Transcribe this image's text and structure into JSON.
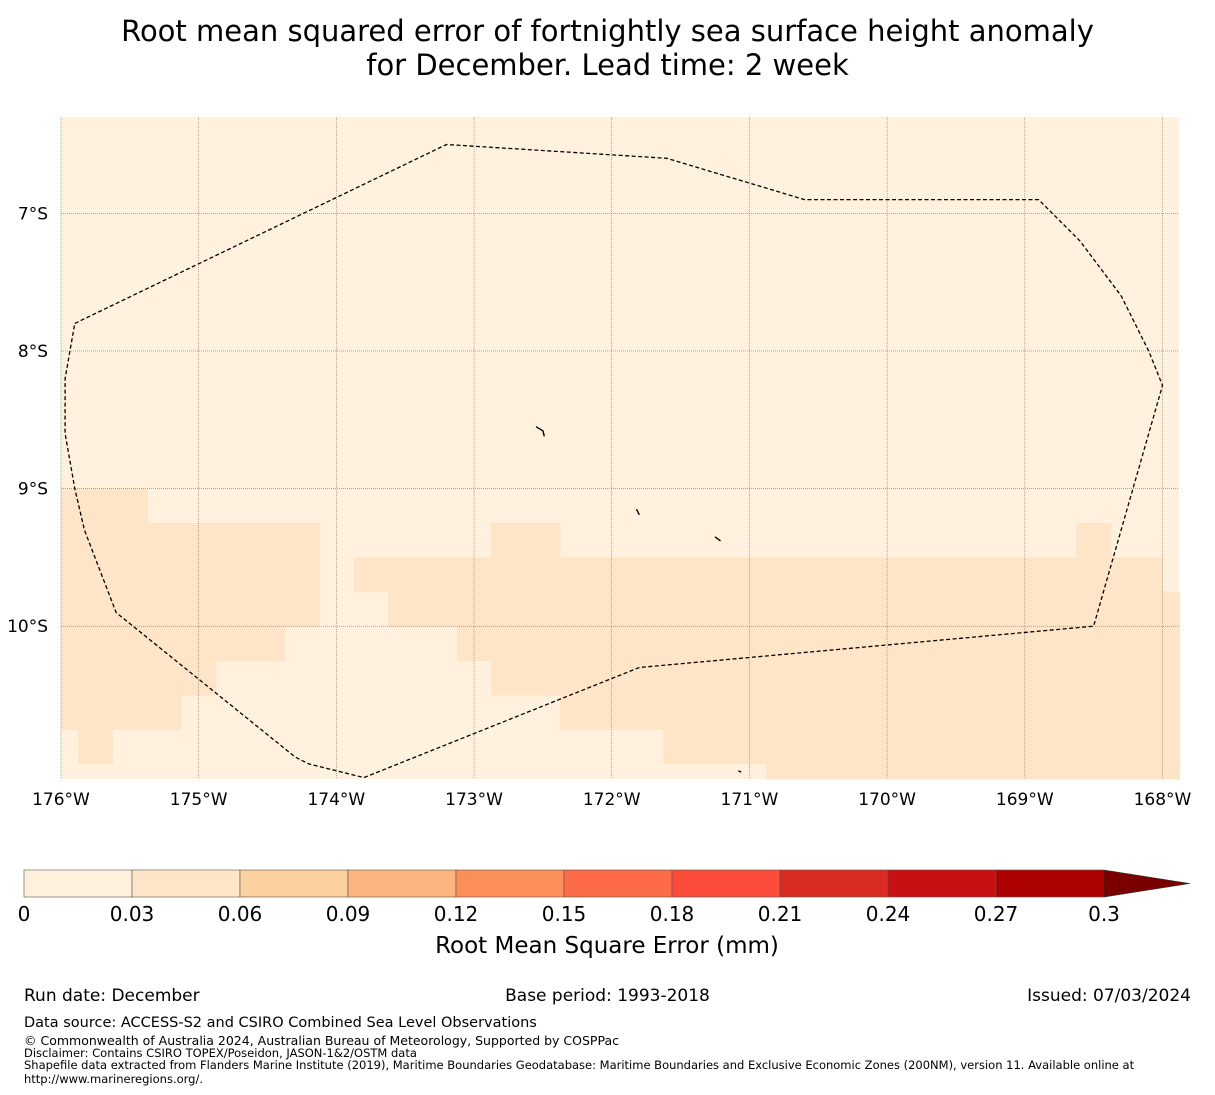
{
  "title": {
    "line1": "Root mean squared error of fortnightly sea surface height anomaly",
    "line2": "for December. Lead time: 2 week"
  },
  "chart_data": {
    "type": "heatmap",
    "title": "Root mean squared error of fortnightly sea surface height anomaly for December. Lead time: 2 week",
    "xlabel": "",
    "ylabel": "",
    "xlim": [
      -176.0,
      -167.88
    ],
    "ylim": [
      -11.11,
      -6.3
    ],
    "x_ticks": [
      {
        "value": -176,
        "label": "176°W"
      },
      {
        "value": -175,
        "label": "175°W"
      },
      {
        "value": -174,
        "label": "174°W"
      },
      {
        "value": -173,
        "label": "173°W"
      },
      {
        "value": -172,
        "label": "172°W"
      },
      {
        "value": -171,
        "label": "171°W"
      },
      {
        "value": -170,
        "label": "170°W"
      },
      {
        "value": -169,
        "label": "169°W"
      },
      {
        "value": -168,
        "label": "168°W"
      }
    ],
    "y_ticks": [
      {
        "value": -7,
        "label": "7°S"
      },
      {
        "value": -8,
        "label": "8°S"
      },
      {
        "value": -9,
        "label": "9°S"
      },
      {
        "value": -10,
        "label": "10°S"
      }
    ],
    "grid": true,
    "background_value_range": "0 - 0.03",
    "regions": [
      {
        "range": "0.03 - 0.06",
        "lon": [
          -176.0,
          -175.375
        ],
        "lat": [
          -9.25,
          -9.0
        ]
      },
      {
        "range": "0.03 - 0.06",
        "lon": [
          -176.0,
          -174.125
        ],
        "lat": [
          -10.0,
          -9.25
        ]
      },
      {
        "range": "0.03 - 0.06",
        "lon": [
          -176.0,
          -174.375
        ],
        "lat": [
          -10.25,
          -10.0
        ]
      },
      {
        "range": "0.03 - 0.06",
        "lon": [
          -176.0,
          -174.875
        ],
        "lat": [
          -10.5,
          -10.25
        ]
      },
      {
        "range": "0.03 - 0.06",
        "lon": [
          -176.0,
          -175.125
        ],
        "lat": [
          -10.75,
          -10.5
        ]
      },
      {
        "range": "0.03 - 0.06",
        "lon": [
          -175.875,
          -175.625
        ],
        "lat": [
          -11.0,
          -10.75
        ]
      },
      {
        "range": "0.03 - 0.06",
        "lon": [
          -172.875,
          -172.375
        ],
        "lat": [
          -9.5,
          -9.25
        ]
      },
      {
        "range": "0.03 - 0.06",
        "lon": [
          -168.625,
          -168.375
        ],
        "lat": [
          -9.5,
          -9.25
        ]
      },
      {
        "range": "0.03 - 0.06",
        "lon": [
          -173.875,
          -168.0
        ],
        "lat": [
          -9.75,
          -9.5
        ]
      },
      {
        "range": "0.03 - 0.06",
        "lon": [
          -173.625,
          -167.875
        ],
        "lat": [
          -10.0,
          -9.75
        ]
      },
      {
        "range": "0.03 - 0.06",
        "lon": [
          -173.125,
          -167.875
        ],
        "lat": [
          -10.25,
          -10.0
        ]
      },
      {
        "range": "0.03 - 0.06",
        "lon": [
          -172.875,
          -167.875
        ],
        "lat": [
          -10.5,
          -10.25
        ]
      },
      {
        "range": "0.03 - 0.06",
        "lon": [
          -172.375,
          -167.875
        ],
        "lat": [
          -10.75,
          -10.5
        ]
      },
      {
        "range": "0.03 - 0.06",
        "lon": [
          -171.625,
          -167.875
        ],
        "lat": [
          -11.0,
          -10.75
        ]
      },
      {
        "range": "0.03 - 0.06",
        "lon": [
          -170.875,
          -167.875
        ],
        "lat": [
          -11.11,
          -11.0
        ]
      }
    ],
    "eez_boundary": [
      [
        -175.9,
        -7.8
      ],
      [
        -173.2,
        -6.5
      ],
      [
        -171.6,
        -6.6
      ],
      [
        -170.6,
        -6.9
      ],
      [
        -168.9,
        -6.9
      ],
      [
        -168.6,
        -7.2
      ],
      [
        -168.3,
        -7.6
      ],
      [
        -168.1,
        -8.0
      ],
      [
        -168.0,
        -8.25
      ],
      [
        -168.5,
        -10.0
      ],
      [
        -171.8,
        -10.3
      ],
      [
        -173.8,
        -11.1
      ],
      [
        -174.2,
        -11.0
      ],
      [
        -174.3,
        -10.95
      ],
      [
        -175.6,
        -9.9
      ],
      [
        -175.83,
        -9.3
      ],
      [
        -175.9,
        -9.0
      ],
      [
        -175.97,
        -8.6
      ],
      [
        -175.97,
        -8.2
      ],
      [
        -175.9,
        -7.8
      ]
    ],
    "islands": [
      [
        [
          -172.55,
          -8.55
        ],
        [
          -172.5,
          -8.58
        ],
        [
          -172.49,
          -8.62
        ]
      ],
      [
        [
          -171.82,
          -9.15
        ],
        [
          -171.8,
          -9.19
        ]
      ],
      [
        [
          -171.25,
          -9.35
        ],
        [
          -171.21,
          -9.38
        ]
      ],
      [
        [
          -171.08,
          -11.05
        ],
        [
          -171.06,
          -11.06
        ]
      ]
    ]
  },
  "colorbar": {
    "label": "Root Mean Square Error (mm)",
    "ticks": [
      "0",
      "0.03",
      "0.06",
      "0.09",
      "0.12",
      "0.15",
      "0.18",
      "0.21",
      "0.24",
      "0.27",
      "0.3"
    ],
    "colors": [
      "#fff1dd",
      "#fee5c7",
      "#fdd09f",
      "#fdb57f",
      "#fc8e59",
      "#fd6a48",
      "#fd4d3a",
      "#d92b21",
      "#c80f14",
      "#ad0000"
    ],
    "extend_color": "#7a0000"
  },
  "footer": {
    "run_date": "Run date: December",
    "base_period": "Base period: 1993-2018",
    "issued": "Issued: 07/03/2024",
    "data_source": "Data source: ACCESS-S2 and CSIRO Combined Sea Level Observations",
    "copyright": "© Commonwealth of Australia 2024, Australian Bureau of Meteorology, Supported by COSPPac",
    "disclaimer": "Disclaimer: Contains CSIRO TOPEX/Poseidon, JASON-1&2/OSTM data",
    "shapefile_line1": "Shapefile data extracted from Flanders Marine Institute (2019), Maritime Boundaries Geodatabase: Maritime Boundaries and Exclusive Economic Zones (200NM), version 11. Available online at",
    "shapefile_line2": "http://www.marineregions.org/."
  }
}
